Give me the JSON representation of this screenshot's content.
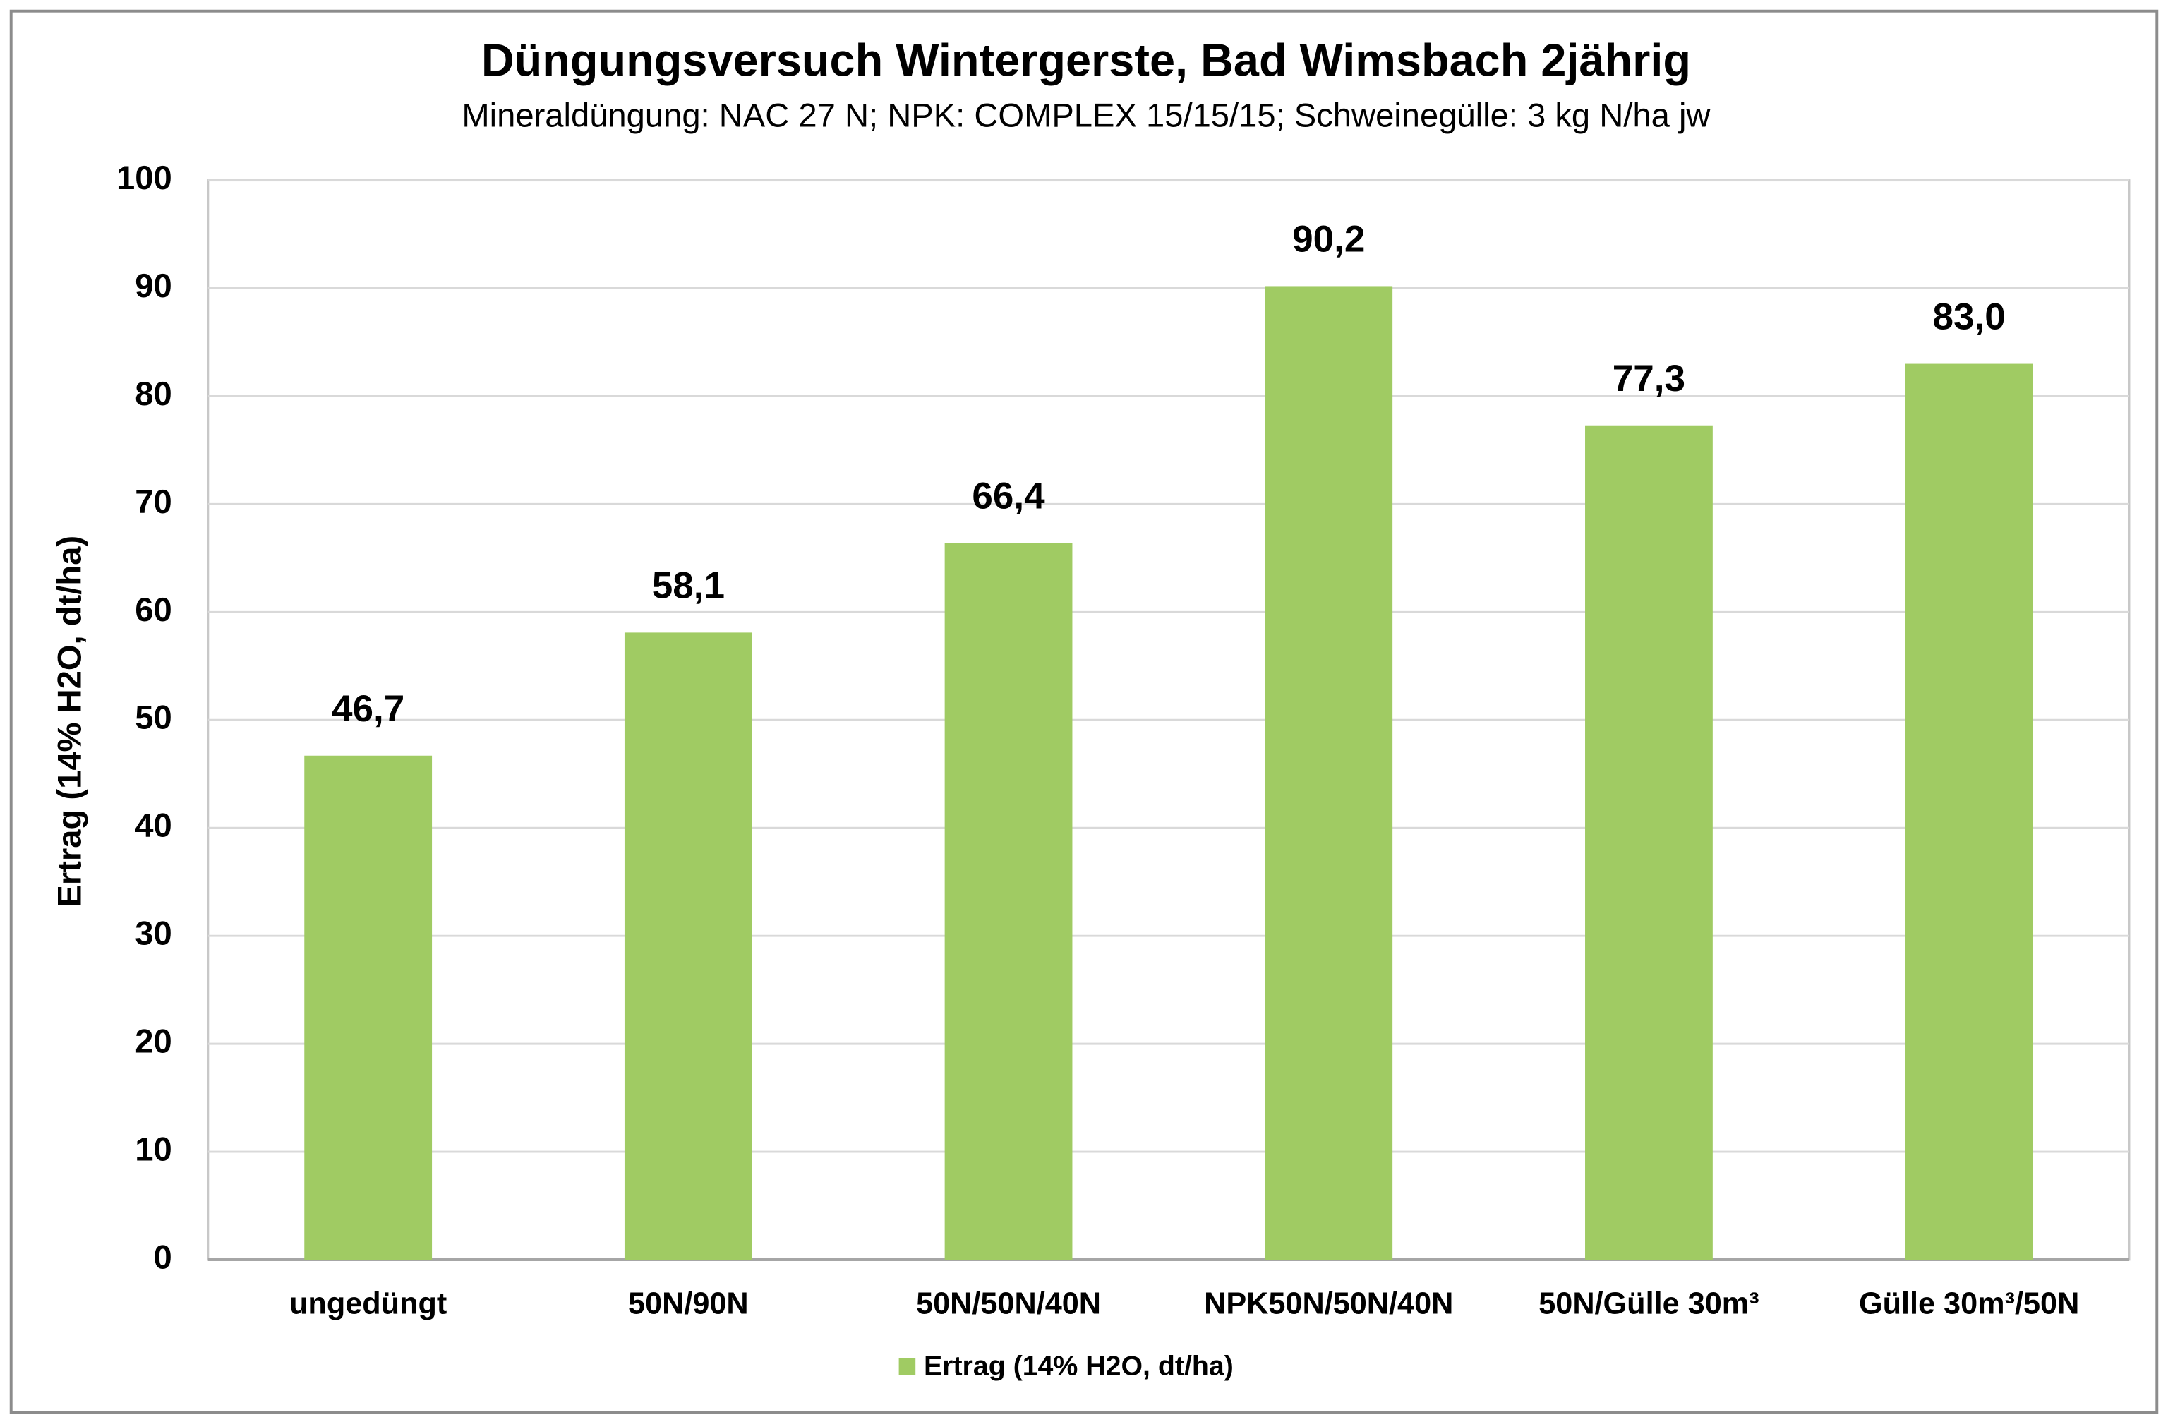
{
  "chart_data": {
    "type": "bar",
    "title": "Düngungsversuch Wintergerste, Bad Wimsbach 2jährig",
    "subtitle": "Mineraldüngung: NAC 27 N; NPK: COMPLEX 15/15/15; Schweinegülle: 3 kg N/ha jw",
    "ylabel": "Ertrag (14% H2O, dt/ha)",
    "categories": [
      "ungedüngt",
      "50N/90N",
      "50N/50N/40N",
      "NPK50N/50N/40N",
      "50N/Gülle 30m³",
      "Gülle 30m³/50N"
    ],
    "series": [
      {
        "name": "Ertrag (14% H2O, dt/ha)",
        "color": "#a0cb63",
        "values": [
          46.7,
          58.1,
          66.4,
          90.2,
          77.3,
          83.0
        ],
        "value_labels": [
          "46,7",
          "58,1",
          "66,4",
          "90,2",
          "77,3",
          "83,0"
        ]
      }
    ],
    "ylim": [
      0,
      100
    ],
    "yticks": [
      0,
      10,
      20,
      30,
      40,
      50,
      60,
      70,
      80,
      90,
      100
    ],
    "grid": true,
    "legend": "bottom"
  }
}
